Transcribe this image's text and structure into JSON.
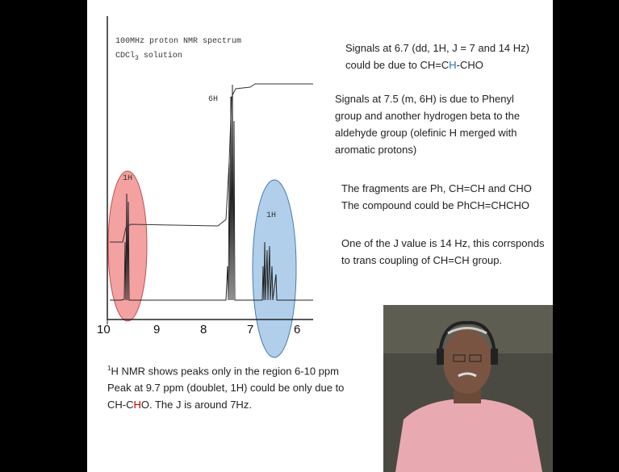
{
  "spectrum": {
    "title": "100MHz proton NMR spectrum",
    "solvent": [
      "CDCl",
      "3",
      " solution"
    ],
    "peak_labels": [
      "6H",
      "1H",
      "1H"
    ],
    "axis_labels": [
      "10",
      "9",
      "8",
      "7",
      "6"
    ]
  },
  "right_notes": [
    [
      "Signals at 6.7 (dd, 1H, J = 7 and 14 Hz)",
      [
        "could be due to CH=C",
        "H",
        "-CHO"
      ]
    ],
    [
      "Signals at 7.5 (m, 6H) is due to Phenyl",
      "group and another hydrogen beta to the",
      "aldehyde group (olefinic H merged with",
      "aromatic protons)"
    ],
    [
      "The fragments are Ph, CH=CH and CHO",
      "The compound could be PhCH=CHCHO"
    ],
    [
      "One of the J value is 14 Hz, this corrsponds",
      "to trans coupling of CH=CH group."
    ]
  ],
  "bottom_notes": [
    [
      "1",
      "H NMR shows peaks only in the region 6-10 ppm"
    ],
    "Peak at 9.7 ppm (doublet, 1H) could be only due to",
    [
      "CH-C",
      "H",
      "O. The J is around 7Hz."
    ]
  ]
}
